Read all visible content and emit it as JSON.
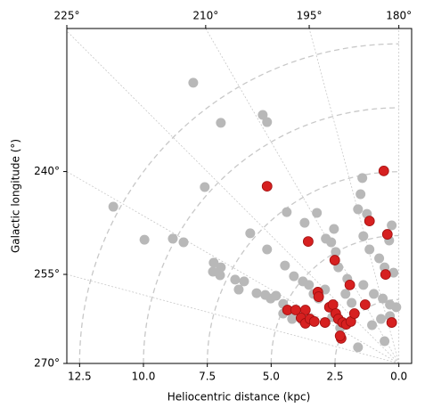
{
  "chart_data": {
    "type": "scatter",
    "xlabel": "Heliocentric distance (kpc)",
    "ylabel": "Galactic longitude (°)",
    "xlim": [
      13,
      -0.5
    ],
    "xticks": [
      12.5,
      10.0,
      7.5,
      5.0,
      2.5,
      0.0
    ],
    "xtick_labels": [
      "12.5",
      "10.0",
      "7.5",
      "5.0",
      "2.5",
      "0.0"
    ],
    "ylim": [
      0,
      13.1
    ],
    "lon_ticks_top": [
      {
        "value": 180,
        "label": "180°"
      },
      {
        "value": 195,
        "label": "195°"
      },
      {
        "value": 210,
        "label": "210°"
      },
      {
        "value": 225,
        "label": "225°"
      }
    ],
    "lon_ticks_left": [
      {
        "value": 240,
        "label": "240°"
      },
      {
        "value": 255,
        "label": "255°"
      },
      {
        "value": 270,
        "label": "270°"
      }
    ],
    "series": [
      {
        "color": "#b8b8b8",
        "x": [
          8.05,
          6.97,
          5.33,
          5.16,
          7.6,
          11.18,
          9.96,
          8.85,
          8.43,
          7.25,
          6.97,
          7.28,
          7.0,
          6.41,
          6.06,
          6.27,
          5.57,
          5.23,
          5.02,
          4.81,
          4.53,
          5.16,
          5.82,
          4.39,
          3.21,
          3.69,
          4.46,
          4.11,
          3.76,
          3.52,
          3.34,
          3.14,
          2.89,
          2.65,
          2.54,
          2.86,
          2.47,
          2.37,
          2.02,
          2.09,
          1.85,
          1.43,
          1.5,
          1.6,
          1.25,
          1.39,
          1.15,
          0.77,
          0.56,
          0.21,
          1.39,
          0.98,
          0.63,
          0.35,
          0.1,
          0.35,
          0.7,
          1.05,
          0.56,
          1.6,
          2.3,
          2.61,
          3.76,
          4.29,
          4.53,
          4.18,
          0.38,
          0.28
        ],
        "y": [
          10.98,
          9.41,
          9.72,
          9.44,
          6.9,
          6.13,
          4.84,
          4.88,
          4.74,
          3.94,
          3.76,
          3.59,
          3.45,
          3.28,
          3.21,
          2.89,
          2.75,
          2.68,
          2.54,
          2.65,
          2.33,
          4.46,
          5.09,
          5.92,
          5.89,
          5.5,
          3.83,
          3.41,
          3.21,
          3.07,
          2.72,
          2.54,
          2.89,
          4.74,
          5.26,
          4.88,
          4.36,
          3.76,
          3.31,
          2.72,
          2.37,
          7.25,
          6.62,
          6.03,
          5.85,
          4.98,
          4.46,
          4.11,
          3.76,
          3.55,
          3.07,
          2.72,
          2.54,
          2.3,
          2.2,
          1.85,
          1.74,
          1.5,
          0.87,
          0.63,
          1.39,
          1.81,
          1.67,
          2.06,
          1.95,
          1.74,
          4.81,
          5.4
        ]
      },
      {
        "color": "#d62020",
        "x": [
          0.59,
          5.16,
          1.15,
          0.45,
          3.55,
          2.51,
          0.52,
          1.92,
          3.17,
          3.14,
          3.66,
          4.36,
          3.83,
          3.66,
          3.48,
          3.31,
          2.72,
          2.58,
          2.47,
          2.37,
          2.2,
          2.06,
          1.88,
          1.74,
          1.32,
          0.28,
          2.26,
          2.3,
          2.89,
          4.04
        ],
        "y": [
          7.53,
          6.93,
          5.57,
          5.05,
          4.77,
          4.04,
          3.48,
          3.07,
          2.79,
          2.61,
          2.09,
          2.09,
          1.78,
          1.57,
          1.74,
          1.64,
          2.2,
          2.3,
          1.95,
          1.74,
          1.6,
          1.53,
          1.64,
          1.95,
          2.3,
          1.6,
          0.98,
          1.08,
          1.6,
          2.09
        ]
      }
    ]
  }
}
